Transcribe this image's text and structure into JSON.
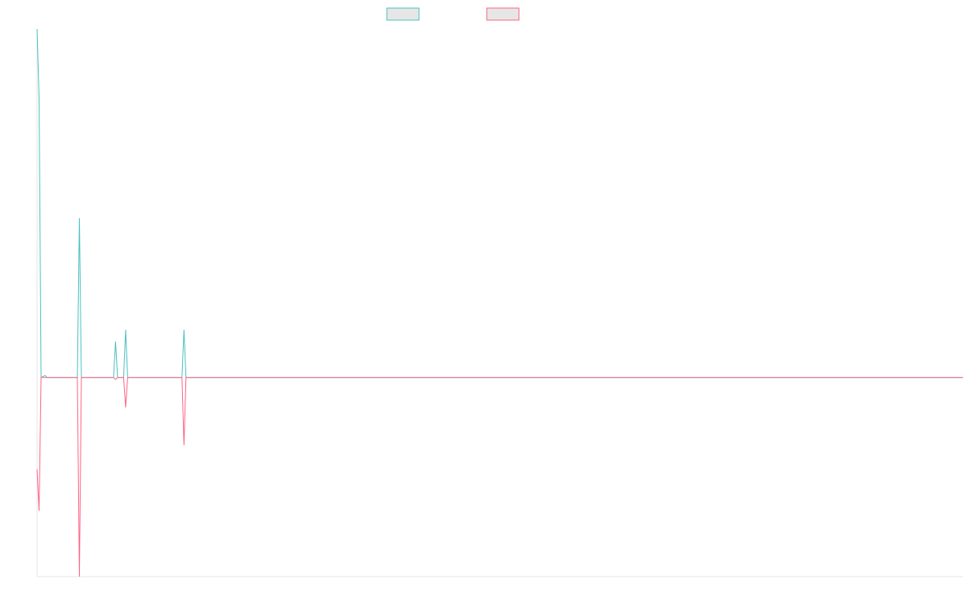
{
  "chart_data": {
    "type": "line",
    "title": "",
    "xlabel": "",
    "ylabel": "",
    "grid": false,
    "legend_position": "top",
    "ylim": [
      -100,
      175
    ],
    "xlim": [
      0,
      460
    ],
    "series": [
      {
        "name": "",
        "color": "#4bc0c0",
        "legend_fill": "#e6e6e6",
        "points": [
          [
            0,
            175
          ],
          [
            1,
            140
          ],
          [
            2,
            0
          ],
          [
            4,
            1
          ],
          [
            5,
            0
          ],
          [
            20,
            0
          ],
          [
            21,
            80
          ],
          [
            22,
            0
          ],
          [
            38,
            0
          ],
          [
            39,
            18
          ],
          [
            40,
            0
          ],
          [
            43,
            0
          ],
          [
            44,
            24
          ],
          [
            45,
            0
          ],
          [
            72,
            0
          ],
          [
            73,
            24
          ],
          [
            74,
            0
          ],
          [
            460,
            0
          ]
        ]
      },
      {
        "name": "",
        "color": "#ff6384",
        "legend_fill": "#e6e6e6",
        "points": [
          [
            0,
            -46
          ],
          [
            1,
            -67
          ],
          [
            2,
            0
          ],
          [
            20,
            0
          ],
          [
            21,
            -100
          ],
          [
            22,
            0
          ],
          [
            38,
            0
          ],
          [
            39,
            -1
          ],
          [
            40,
            0
          ],
          [
            43,
            0
          ],
          [
            44,
            -15
          ],
          [
            45,
            0
          ],
          [
            72,
            0
          ],
          [
            73,
            -34
          ],
          [
            74,
            0
          ],
          [
            460,
            0
          ]
        ]
      }
    ]
  }
}
